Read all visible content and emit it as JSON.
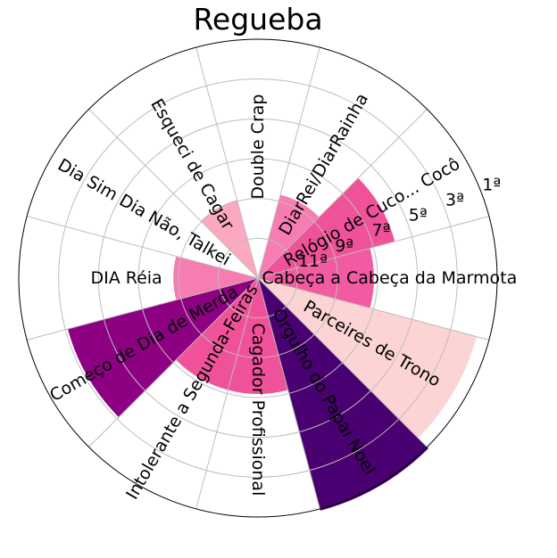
{
  "chart_data": {
    "type": "bar",
    "subtype": "polar",
    "title": "Regueba",
    "categories": [
      "Cabeça a Cabeça da Marmota",
      "Relógio de Cuco... Cocô",
      "DiarRei/DiarRainha",
      "Double Crap",
      "Esqueci de Cagar",
      "Dia Sim Dia Não, Talkei",
      "DIA Réia",
      "Começo de Dia de Merda",
      "Intolerante a Segunda-Feiras",
      "Cagador Profissional",
      "Orgulho do Papai Noel",
      "Parceires de Trono"
    ],
    "values": [
      6.3,
      7.7,
      4.7,
      0,
      4.4,
      0,
      4.6,
      10.7,
      6.3,
      6.3,
      13.1,
      12.3
    ],
    "colors": [
      "#f25ba1",
      "#f0529a",
      "#f77cb1",
      "#ffffff",
      "#fba8c0",
      "#ffffff",
      "#f77cb1",
      "#8d0081",
      "#f0529a",
      "#f0529a",
      "#490070",
      "#fdd4d4"
    ],
    "radial_ticks": [
      "11ª",
      "9ª",
      "7ª",
      "5ª",
      "3ª",
      "1ª"
    ],
    "rmax": 13,
    "grid": true
  }
}
